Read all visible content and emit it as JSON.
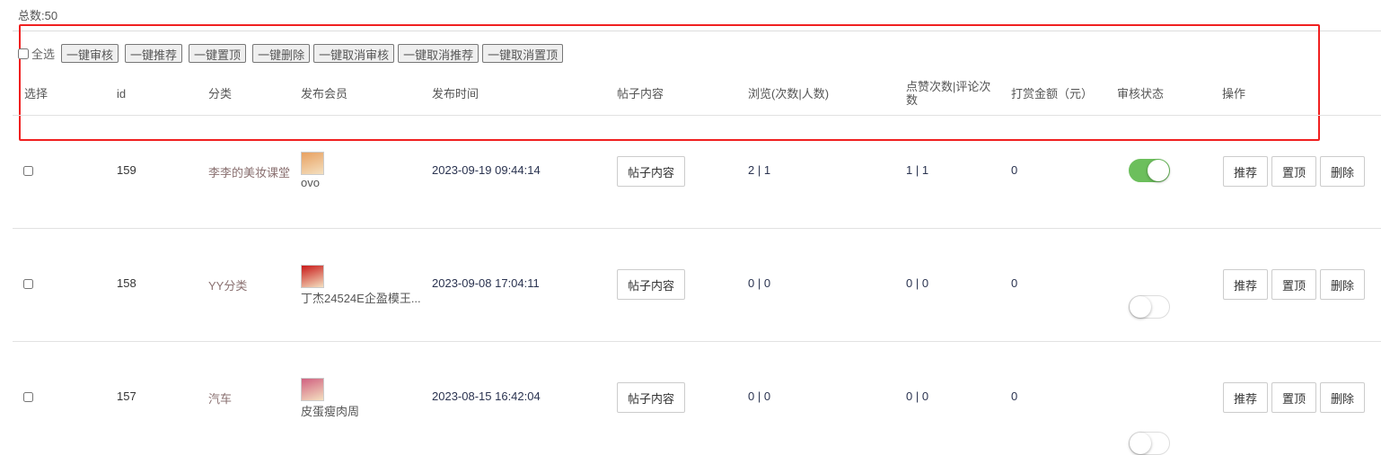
{
  "total_label": "总数:50",
  "bulk": {
    "select_all": "全选",
    "buttons": [
      "一键审核",
      "一键推荐",
      "一键置顶",
      "一键删除",
      "一键取消审核",
      "一键取消推荐",
      "一键取消置顶"
    ]
  },
  "headers": [
    "选择",
    "id",
    "分类",
    "发布会员",
    "发布时间",
    "帖子内容",
    "浏览(次数|人数)",
    "点赞次数|评论次数",
    "打赏金额（元）",
    "审核状态",
    "操作"
  ],
  "rows": [
    {
      "id": "159",
      "category": "李李的美妆课堂",
      "member": "ovo",
      "avatar_color": "#e8a060",
      "time": "2023-09-19 09:44:14",
      "content_btn": "帖子内容",
      "views": "2 | 1",
      "likes": "1 | 1",
      "reward": "0",
      "approved": true
    },
    {
      "id": "158",
      "category": "YY分类",
      "member": "丁杰24524E企盈模王...",
      "avatar_color": "#c81818",
      "time": "2023-09-08 17:04:11",
      "content_btn": "帖子内容",
      "views": "0 | 0",
      "likes": "0 | 0",
      "reward": "0",
      "approved": false
    },
    {
      "id": "157",
      "category": "汽车",
      "member": "皮蛋瘦肉周",
      "avatar_color": "#d06080",
      "time": "2023-08-15 16:42:04",
      "content_btn": "帖子内容",
      "views": "0 | 0",
      "likes": "0 | 0",
      "reward": "0",
      "approved": false
    }
  ],
  "actions": {
    "recommend": "推荐",
    "top": "置顶",
    "delete": "删除"
  }
}
